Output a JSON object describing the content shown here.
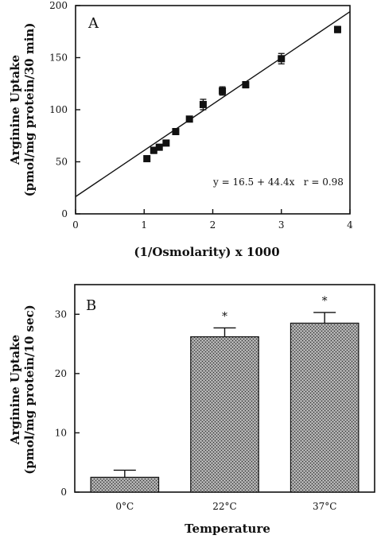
{
  "chart_data": [
    {
      "panel": "A",
      "type": "scatter",
      "xlabel": "(1/Osmolarity) x 1000",
      "ylabel_line1": "Arginine Uptake",
      "ylabel_line2": "(pmol/mg protein/30 min)",
      "xlim": [
        0,
        4
      ],
      "ylim": [
        0,
        200
      ],
      "xticks": [
        "0",
        "1",
        "2",
        "3",
        "4"
      ],
      "yticks": [
        "0",
        "50",
        "100",
        "150",
        "200"
      ],
      "points": [
        {
          "x": 1.04,
          "y": 53,
          "err": 2
        },
        {
          "x": 1.14,
          "y": 61,
          "err": 3
        },
        {
          "x": 1.22,
          "y": 64,
          "err": 2
        },
        {
          "x": 1.32,
          "y": 68,
          "err": 2
        },
        {
          "x": 1.46,
          "y": 79,
          "err": 2
        },
        {
          "x": 1.66,
          "y": 91,
          "err": 2
        },
        {
          "x": 1.86,
          "y": 105,
          "err": 5
        },
        {
          "x": 2.14,
          "y": 118,
          "err": 4
        },
        {
          "x": 2.48,
          "y": 124,
          "err": 3
        },
        {
          "x": 3.0,
          "y": 149,
          "err": 5
        },
        {
          "x": 3.82,
          "y": 177,
          "err": 3
        }
      ],
      "fit": {
        "intercept": 16.5,
        "slope": 44.4
      },
      "annotation": "y = 16.5 + 44.4x   r = 0.98"
    },
    {
      "panel": "B",
      "type": "bar",
      "xlabel": "Temperature",
      "ylabel_line1": "Arginine Uptake",
      "ylabel_line2": "(pmol/mg protein/10 sec)",
      "ylim": [
        0,
        35
      ],
      "yticks": [
        "0",
        "10",
        "20",
        "30"
      ],
      "categories": [
        "0°C",
        "22°C",
        "37°C"
      ],
      "values": [
        2.5,
        26.2,
        28.5
      ],
      "errors": [
        1.2,
        1.5,
        1.8
      ],
      "significance": [
        "",
        "*",
        "*"
      ]
    }
  ]
}
